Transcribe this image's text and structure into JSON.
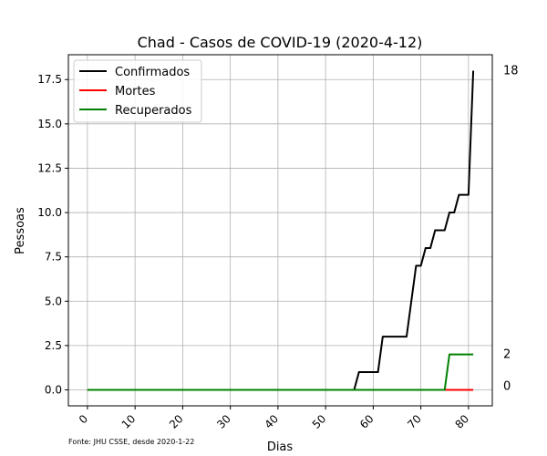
{
  "chart_data": {
    "type": "line",
    "title": "Chad - Casos de COVID-19 (2020-4-12)",
    "xlabel": "Dias",
    "ylabel": "Pessoas",
    "source_note": "Fonte: JHU CSSE, desde 2020-1-22",
    "xlim": [
      -4,
      85
    ],
    "ylim": [
      -0.9,
      18.9
    ],
    "x_ticks": [
      0,
      10,
      20,
      30,
      40,
      50,
      60,
      70,
      80
    ],
    "y_ticks": [
      0.0,
      2.5,
      5.0,
      7.5,
      10.0,
      12.5,
      15.0,
      17.5
    ],
    "y_tick_labels": [
      "0.0",
      "2.5",
      "5.0",
      "7.5",
      "10.0",
      "12.5",
      "15.0",
      "17.5"
    ],
    "grid": true,
    "legend_position": "top-left",
    "x": [
      0,
      1,
      2,
      3,
      4,
      5,
      6,
      7,
      8,
      9,
      10,
      11,
      12,
      13,
      14,
      15,
      16,
      17,
      18,
      19,
      20,
      21,
      22,
      23,
      24,
      25,
      26,
      27,
      28,
      29,
      30,
      31,
      32,
      33,
      34,
      35,
      36,
      37,
      38,
      39,
      40,
      41,
      42,
      43,
      44,
      45,
      46,
      47,
      48,
      49,
      50,
      51,
      52,
      53,
      54,
      55,
      56,
      57,
      58,
      59,
      60,
      61,
      62,
      63,
      64,
      65,
      66,
      67,
      68,
      69,
      70,
      71,
      72,
      73,
      74,
      75,
      76,
      77,
      78,
      79,
      80,
      81
    ],
    "series": [
      {
        "name": "Confirmados",
        "color": "#000000",
        "end_label": "18",
        "values": [
          0,
          0,
          0,
          0,
          0,
          0,
          0,
          0,
          0,
          0,
          0,
          0,
          0,
          0,
          0,
          0,
          0,
          0,
          0,
          0,
          0,
          0,
          0,
          0,
          0,
          0,
          0,
          0,
          0,
          0,
          0,
          0,
          0,
          0,
          0,
          0,
          0,
          0,
          0,
          0,
          0,
          0,
          0,
          0,
          0,
          0,
          0,
          0,
          0,
          0,
          0,
          0,
          0,
          0,
          0,
          0,
          0,
          1,
          1,
          1,
          1,
          1,
          3,
          3,
          3,
          3,
          3,
          3,
          5,
          7,
          7,
          8,
          8,
          9,
          9,
          9,
          10,
          10,
          11,
          11,
          11,
          18
        ]
      },
      {
        "name": "Mortes",
        "color": "#ff0000",
        "end_label": "0",
        "values": [
          0,
          0,
          0,
          0,
          0,
          0,
          0,
          0,
          0,
          0,
          0,
          0,
          0,
          0,
          0,
          0,
          0,
          0,
          0,
          0,
          0,
          0,
          0,
          0,
          0,
          0,
          0,
          0,
          0,
          0,
          0,
          0,
          0,
          0,
          0,
          0,
          0,
          0,
          0,
          0,
          0,
          0,
          0,
          0,
          0,
          0,
          0,
          0,
          0,
          0,
          0,
          0,
          0,
          0,
          0,
          0,
          0,
          0,
          0,
          0,
          0,
          0,
          0,
          0,
          0,
          0,
          0,
          0,
          0,
          0,
          0,
          0,
          0,
          0,
          0,
          0,
          0,
          0,
          0,
          0,
          0,
          0
        ]
      },
      {
        "name": "Recuperados",
        "color": "#008000",
        "end_label": "2",
        "values": [
          0,
          0,
          0,
          0,
          0,
          0,
          0,
          0,
          0,
          0,
          0,
          0,
          0,
          0,
          0,
          0,
          0,
          0,
          0,
          0,
          0,
          0,
          0,
          0,
          0,
          0,
          0,
          0,
          0,
          0,
          0,
          0,
          0,
          0,
          0,
          0,
          0,
          0,
          0,
          0,
          0,
          0,
          0,
          0,
          0,
          0,
          0,
          0,
          0,
          0,
          0,
          0,
          0,
          0,
          0,
          0,
          0,
          0,
          0,
          0,
          0,
          0,
          0,
          0,
          0,
          0,
          0,
          0,
          0,
          0,
          0,
          0,
          0,
          0,
          0,
          0,
          2,
          2,
          2,
          2,
          2,
          2
        ]
      }
    ]
  }
}
